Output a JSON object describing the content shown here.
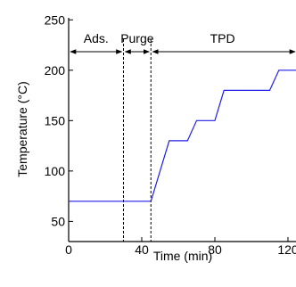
{
  "chart_data": {
    "type": "line",
    "xlabel": "Time (min)",
    "ylabel": "Temperature (°C)",
    "xlim": [
      0,
      125
    ],
    "ylim": [
      30,
      252
    ],
    "x_ticks": [
      0,
      40,
      80,
      120
    ],
    "x_tick_labels": [
      "0",
      "40",
      "80",
      "120"
    ],
    "y_ticks": [
      50,
      100,
      150,
      200,
      250
    ],
    "y_tick_labels": [
      "50",
      "100",
      "150",
      "200",
      "250"
    ],
    "grid": false,
    "line_color": "#1f1fe6",
    "series": [
      {
        "x": [
          0,
          45,
          55,
          65,
          70,
          80,
          85,
          95,
          100,
          110,
          115,
          125
        ],
        "y": [
          70,
          70,
          130,
          130,
          150,
          150,
          180,
          180,
          180,
          180,
          200,
          200
        ]
      }
    ],
    "phase_dividers_x": [
      0,
      30,
      45
    ],
    "phases": [
      {
        "label": "Ads.",
        "x_start": 0,
        "x_end": 30
      },
      {
        "label": "Purge",
        "x_start": 30,
        "x_end": 45
      },
      {
        "label": "TPD",
        "x_start": 45,
        "x_end": 125
      }
    ]
  }
}
